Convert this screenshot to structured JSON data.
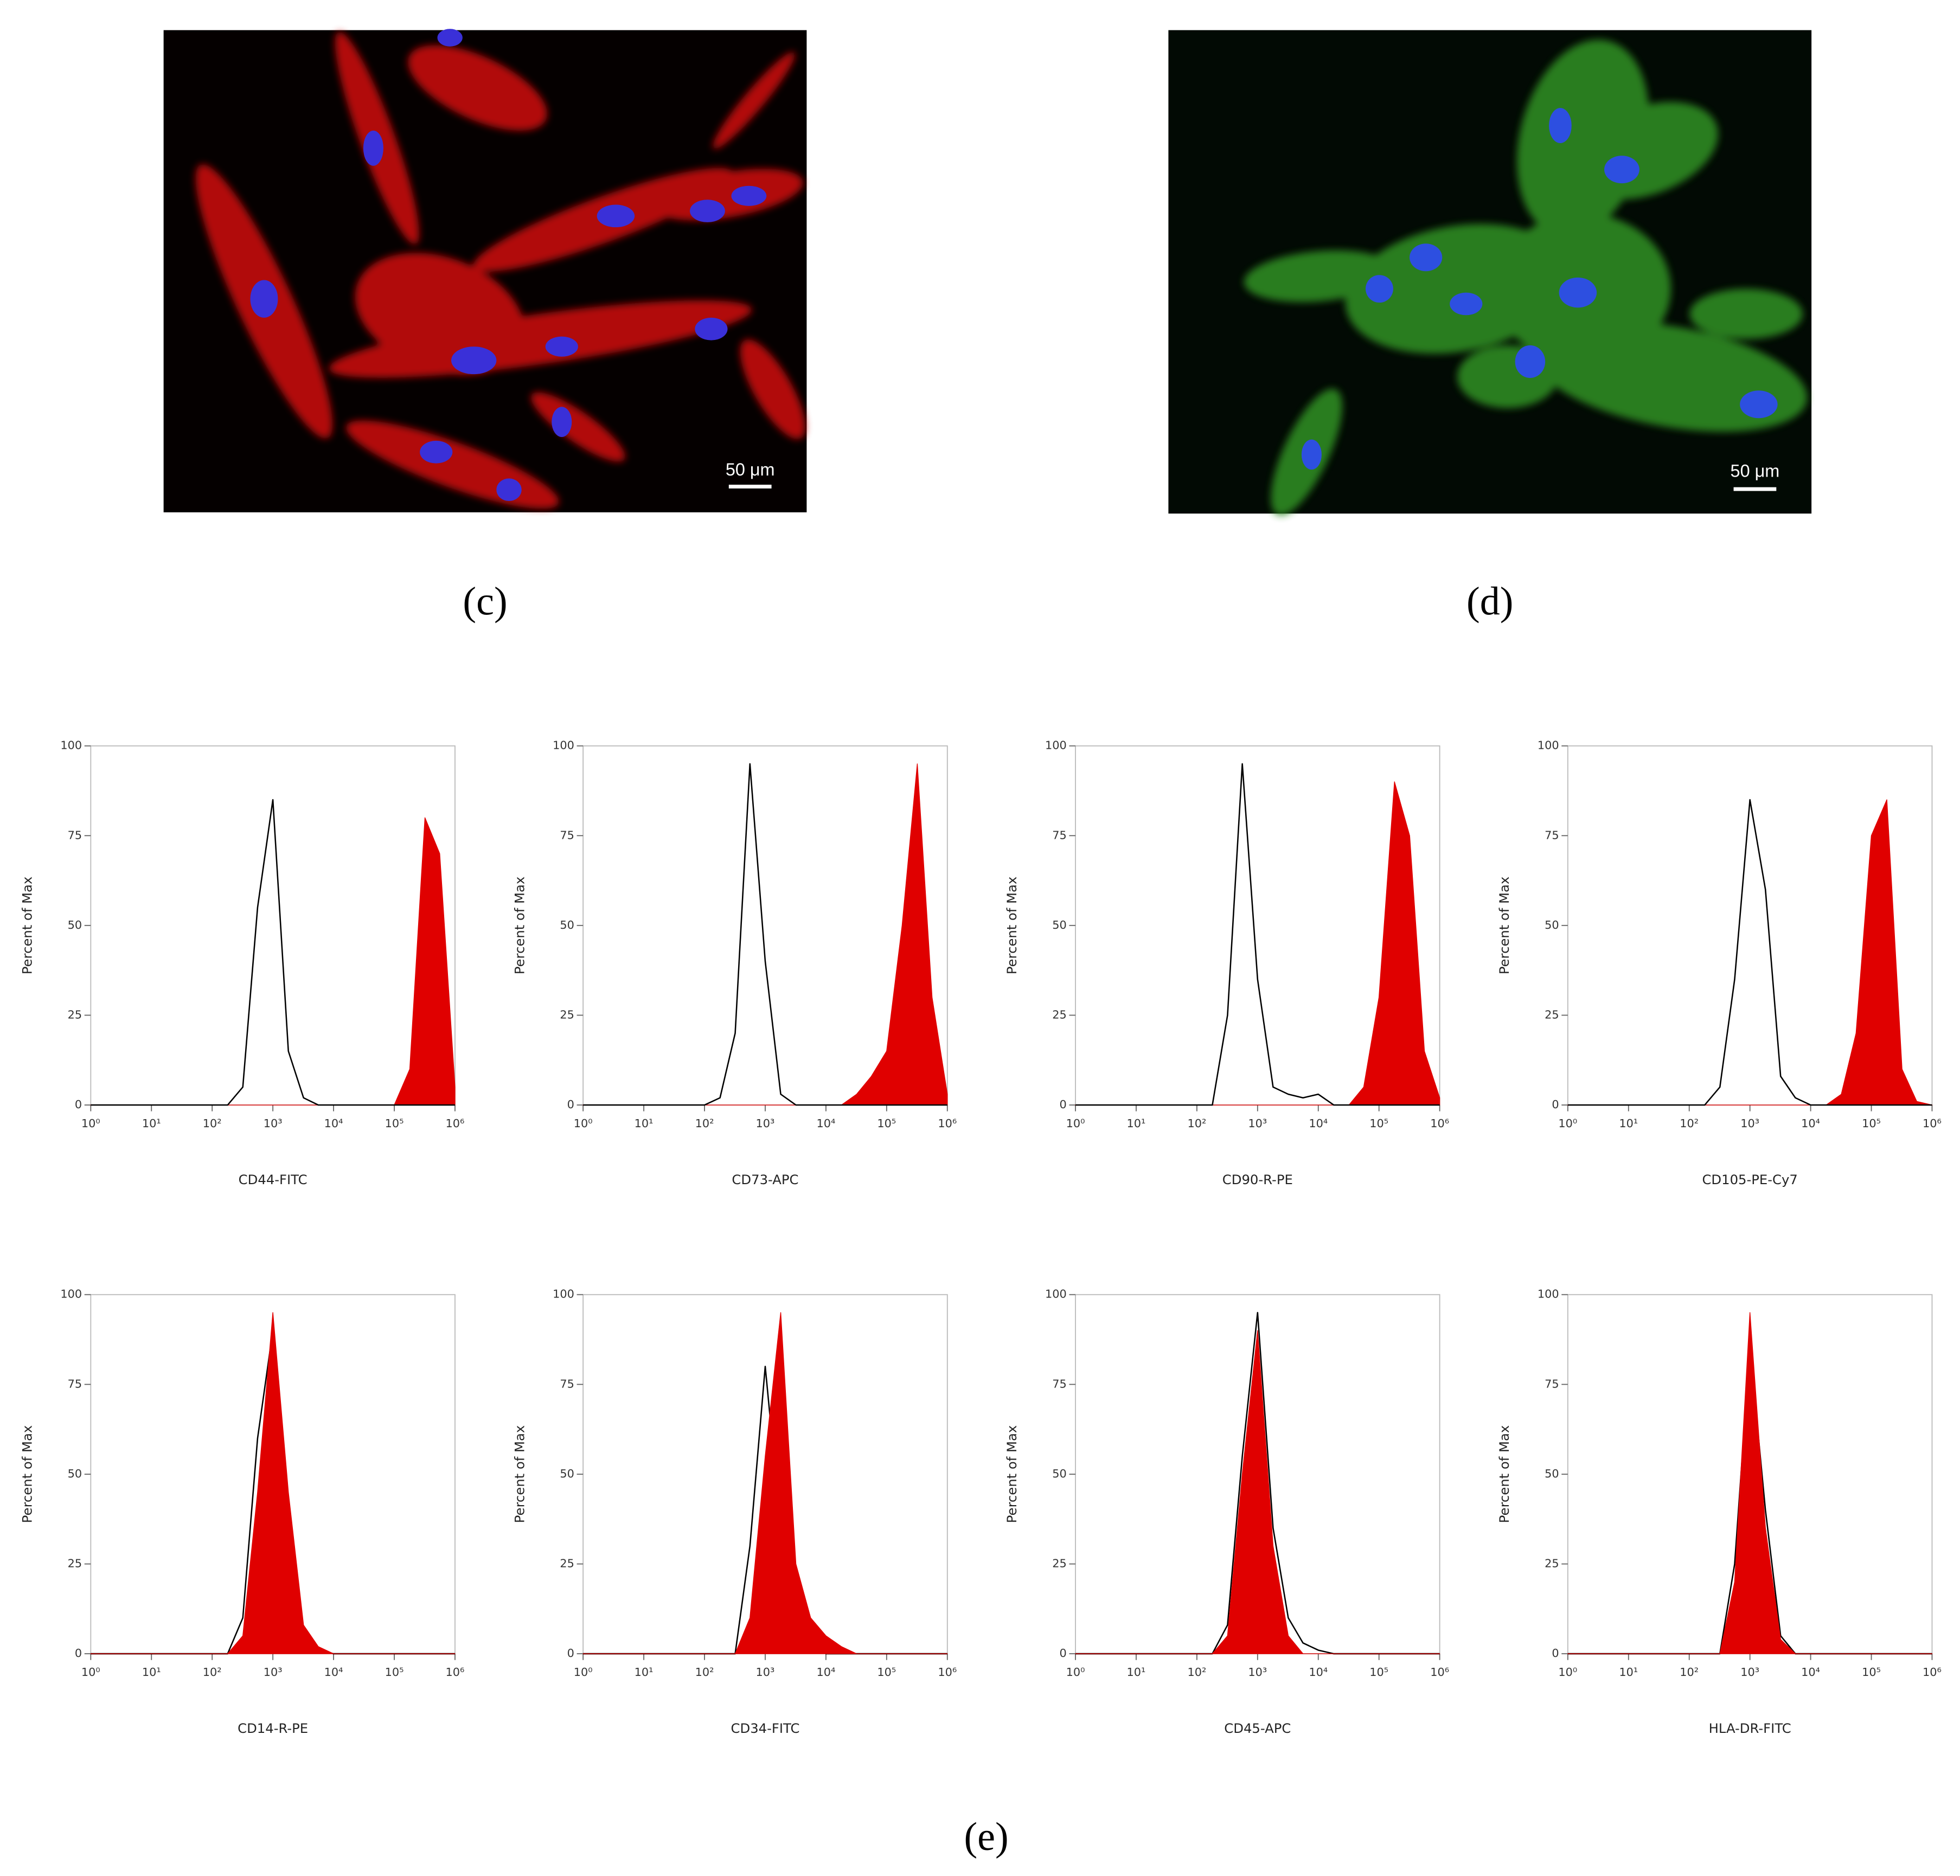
{
  "images": [
    {
      "label": "(c)",
      "scale_label": "50 μm"
    },
    {
      "label": "(d)",
      "scale_label": "50 μm"
    }
  ],
  "panel_e_label": "(e)",
  "chart_data": [
    {
      "type": "area",
      "xlabel": "CD44-FITC",
      "ylabel": "Percent of Max",
      "xscale": "log",
      "xlim": [
        1,
        1000000
      ],
      "ylim": [
        0,
        100
      ],
      "xticks": [
        {
          "value": 1,
          "label": "10⁰"
        },
        {
          "value": 10,
          "label": "10¹"
        },
        {
          "value": 100,
          "label": "10²"
        },
        {
          "value": 1000,
          "label": "10³"
        },
        {
          "value": 10000,
          "label": "10⁴"
        },
        {
          "value": 100000,
          "label": "10⁵"
        },
        {
          "value": 1000000,
          "label": "10⁶"
        }
      ],
      "yticks": [
        0,
        25,
        50,
        75,
        100
      ],
      "x": [
        1,
        2,
        3,
        6,
        10,
        18,
        32,
        56,
        100,
        180,
        320,
        560,
        1000,
        1800,
        3200,
        5600,
        10000,
        18000,
        32000,
        56000,
        100000,
        180000,
        320000,
        560000,
        1000000
      ],
      "series": [
        {
          "color": "#e00000",
          "fill": true,
          "values": [
            0,
            0,
            0,
            0,
            0,
            0,
            0,
            0,
            0,
            0,
            0,
            0,
            0,
            0,
            0,
            0,
            0,
            0,
            0,
            0,
            0,
            10,
            80,
            70,
            5
          ]
        },
        {
          "color": "#000000",
          "fill": false,
          "values": [
            0,
            0,
            0,
            0,
            0,
            0,
            0,
            0,
            0,
            0,
            5,
            55,
            85,
            15,
            2,
            0,
            0,
            0,
            0,
            0,
            0,
            0,
            0,
            0,
            0
          ]
        }
      ]
    },
    {
      "type": "area",
      "xlabel": "CD73-APC",
      "ylabel": "Percent of Max",
      "xscale": "log",
      "xlim": [
        1,
        1000000
      ],
      "ylim": [
        0,
        100
      ],
      "xticks": [
        {
          "value": 1,
          "label": "10⁰"
        },
        {
          "value": 10,
          "label": "10¹"
        },
        {
          "value": 100,
          "label": "10²"
        },
        {
          "value": 1000,
          "label": "10³"
        },
        {
          "value": 10000,
          "label": "10⁴"
        },
        {
          "value": 100000,
          "label": "10⁵"
        },
        {
          "value": 1000000,
          "label": "10⁶"
        }
      ],
      "yticks": [
        0,
        25,
        50,
        75,
        100
      ],
      "x": [
        1,
        2,
        3,
        6,
        10,
        18,
        32,
        56,
        100,
        180,
        320,
        560,
        1000,
        1800,
        3200,
        5600,
        10000,
        18000,
        32000,
        56000,
        100000,
        180000,
        320000,
        560000,
        1000000
      ],
      "series": [
        {
          "color": "#e00000",
          "fill": true,
          "values": [
            0,
            0,
            0,
            0,
            0,
            0,
            0,
            0,
            0,
            0,
            0,
            0,
            0,
            0,
            0,
            0,
            0,
            0,
            3,
            8,
            15,
            50,
            95,
            30,
            3
          ]
        },
        {
          "color": "#000000",
          "fill": false,
          "values": [
            0,
            0,
            0,
            0,
            0,
            0,
            0,
            0,
            0,
            2,
            20,
            95,
            40,
            3,
            0,
            0,
            0,
            0,
            0,
            0,
            0,
            0,
            0,
            0,
            0
          ]
        }
      ]
    },
    {
      "type": "area",
      "xlabel": "CD90-R-PE",
      "ylabel": "Percent of Max",
      "xscale": "log",
      "xlim": [
        1,
        1000000
      ],
      "ylim": [
        0,
        100
      ],
      "xticks": [
        {
          "value": 1,
          "label": "10⁰"
        },
        {
          "value": 10,
          "label": "10¹"
        },
        {
          "value": 100,
          "label": "10²"
        },
        {
          "value": 1000,
          "label": "10³"
        },
        {
          "value": 10000,
          "label": "10⁴"
        },
        {
          "value": 100000,
          "label": "10⁵"
        },
        {
          "value": 1000000,
          "label": "10⁶"
        }
      ],
      "yticks": [
        0,
        25,
        50,
        75,
        100
      ],
      "x": [
        1,
        2,
        3,
        6,
        10,
        18,
        32,
        56,
        100,
        180,
        320,
        560,
        1000,
        1800,
        3200,
        5600,
        10000,
        18000,
        32000,
        56000,
        100000,
        180000,
        320000,
        560000,
        1000000
      ],
      "series": [
        {
          "color": "#e00000",
          "fill": true,
          "values": [
            0,
            0,
            0,
            0,
            0,
            0,
            0,
            0,
            0,
            0,
            0,
            0,
            0,
            0,
            0,
            0,
            0,
            0,
            0,
            5,
            30,
            90,
            75,
            15,
            2
          ]
        },
        {
          "color": "#000000",
          "fill": false,
          "values": [
            0,
            0,
            0,
            0,
            0,
            0,
            0,
            0,
            0,
            0,
            25,
            95,
            35,
            5,
            3,
            2,
            3,
            0,
            0,
            0,
            0,
            0,
            0,
            0,
            0
          ]
        }
      ]
    },
    {
      "type": "area",
      "xlabel": "CD105-PE-Cy7",
      "ylabel": "Percent of Max",
      "xscale": "log",
      "xlim": [
        1,
        1000000
      ],
      "ylim": [
        0,
        100
      ],
      "xticks": [
        {
          "value": 1,
          "label": "10⁰"
        },
        {
          "value": 10,
          "label": "10¹"
        },
        {
          "value": 100,
          "label": "10²"
        },
        {
          "value": 1000,
          "label": "10³"
        },
        {
          "value": 10000,
          "label": "10⁴"
        },
        {
          "value": 100000,
          "label": "10⁵"
        },
        {
          "value": 1000000,
          "label": "10⁶"
        }
      ],
      "yticks": [
        0,
        25,
        50,
        75,
        100
      ],
      "x": [
        1,
        2,
        3,
        6,
        10,
        18,
        32,
        56,
        100,
        180,
        320,
        560,
        1000,
        1800,
        3200,
        5600,
        10000,
        18000,
        32000,
        56000,
        100000,
        180000,
        320000,
        560000,
        1000000
      ],
      "series": [
        {
          "color": "#e00000",
          "fill": true,
          "values": [
            0,
            0,
            0,
            0,
            0,
            0,
            0,
            0,
            0,
            0,
            0,
            0,
            0,
            0,
            0,
            0,
            0,
            0,
            3,
            20,
            75,
            85,
            10,
            1,
            0
          ]
        },
        {
          "color": "#000000",
          "fill": false,
          "values": [
            0,
            0,
            0,
            0,
            0,
            0,
            0,
            0,
            0,
            0,
            5,
            35,
            85,
            60,
            8,
            2,
            0,
            0,
            0,
            0,
            0,
            0,
            0,
            0,
            0
          ]
        }
      ]
    },
    {
      "type": "area",
      "xlabel": "CD14-R-PE",
      "ylabel": "Percent of Max",
      "xscale": "log",
      "xlim": [
        1,
        1000000
      ],
      "ylim": [
        0,
        100
      ],
      "xticks": [
        {
          "value": 1,
          "label": "10⁰"
        },
        {
          "value": 10,
          "label": "10¹"
        },
        {
          "value": 100,
          "label": "10²"
        },
        {
          "value": 1000,
          "label": "10³"
        },
        {
          "value": 10000,
          "label": "10⁴"
        },
        {
          "value": 100000,
          "label": "10⁵"
        },
        {
          "value": 1000000,
          "label": "10⁶"
        }
      ],
      "yticks": [
        0,
        25,
        50,
        75,
        100
      ],
      "x": [
        1,
        2,
        3,
        6,
        10,
        18,
        32,
        56,
        100,
        180,
        320,
        560,
        1000,
        1800,
        3200,
        5600,
        10000,
        18000,
        32000,
        56000,
        100000,
        180000,
        320000,
        560000,
        1000000
      ],
      "series": [
        {
          "color": "#000000",
          "fill": false,
          "values": [
            0,
            0,
            0,
            0,
            0,
            0,
            0,
            0,
            0,
            0,
            10,
            60,
            90,
            30,
            5,
            1,
            0,
            0,
            0,
            0,
            0,
            0,
            0,
            0,
            0
          ]
        },
        {
          "color": "#e00000",
          "fill": true,
          "values": [
            0,
            0,
            0,
            0,
            0,
            0,
            0,
            0,
            0,
            0,
            5,
            45,
            95,
            45,
            8,
            2,
            0,
            0,
            0,
            0,
            0,
            0,
            0,
            0,
            0
          ]
        }
      ]
    },
    {
      "type": "area",
      "xlabel": "CD34-FITC",
      "ylabel": "Percent of Max",
      "xscale": "log",
      "xlim": [
        1,
        1000000
      ],
      "ylim": [
        0,
        100
      ],
      "xticks": [
        {
          "value": 1,
          "label": "10⁰"
        },
        {
          "value": 10,
          "label": "10¹"
        },
        {
          "value": 100,
          "label": "10²"
        },
        {
          "value": 1000,
          "label": "10³"
        },
        {
          "value": 10000,
          "label": "10⁴"
        },
        {
          "value": 100000,
          "label": "10⁵"
        },
        {
          "value": 1000000,
          "label": "10⁶"
        }
      ],
      "yticks": [
        0,
        25,
        50,
        75,
        100
      ],
      "x": [
        1,
        2,
        3,
        6,
        10,
        18,
        32,
        56,
        100,
        180,
        320,
        560,
        1000,
        1800,
        3200,
        5600,
        10000,
        18000,
        32000,
        56000,
        100000,
        180000,
        320000,
        560000,
        1000000
      ],
      "series": [
        {
          "color": "#000000",
          "fill": false,
          "values": [
            0,
            0,
            0,
            0,
            0,
            0,
            0,
            0,
            0,
            0,
            0,
            30,
            80,
            35,
            10,
            3,
            0,
            0,
            0,
            0,
            0,
            0,
            0,
            0,
            0
          ]
        },
        {
          "color": "#e00000",
          "fill": true,
          "values": [
            0,
            0,
            0,
            0,
            0,
            0,
            0,
            0,
            0,
            0,
            0,
            10,
            55,
            95,
            25,
            10,
            5,
            2,
            0,
            0,
            0,
            0,
            0,
            0,
            0
          ]
        }
      ]
    },
    {
      "type": "area",
      "xlabel": "CD45-APC",
      "ylabel": "Percent of Max",
      "xscale": "log",
      "xlim": [
        1,
        1000000
      ],
      "ylim": [
        0,
        100
      ],
      "xticks": [
        {
          "value": 1,
          "label": "10⁰"
        },
        {
          "value": 10,
          "label": "10¹"
        },
        {
          "value": 100,
          "label": "10²"
        },
        {
          "value": 1000,
          "label": "10³"
        },
        {
          "value": 10000,
          "label": "10⁴"
        },
        {
          "value": 100000,
          "label": "10⁵"
        },
        {
          "value": 1000000,
          "label": "10⁶"
        }
      ],
      "yticks": [
        0,
        25,
        50,
        75,
        100
      ],
      "x": [
        1,
        2,
        3,
        6,
        10,
        18,
        32,
        56,
        100,
        180,
        320,
        560,
        1000,
        1800,
        3200,
        5600,
        10000,
        18000,
        32000,
        56000,
        100000,
        180000,
        320000,
        560000,
        1000000
      ],
      "series": [
        {
          "color": "#000000",
          "fill": false,
          "values": [
            0,
            0,
            0,
            0,
            0,
            0,
            0,
            0,
            0,
            0,
            8,
            55,
            95,
            35,
            10,
            3,
            1,
            0,
            0,
            0,
            0,
            0,
            0,
            0,
            0
          ]
        },
        {
          "color": "#e00000",
          "fill": true,
          "values": [
            0,
            0,
            0,
            0,
            0,
            0,
            0,
            0,
            0,
            0,
            5,
            50,
            90,
            30,
            5,
            0,
            0,
            0,
            0,
            0,
            0,
            0,
            0,
            0,
            0
          ]
        }
      ]
    },
    {
      "type": "area",
      "xlabel": "HLA-DR-FITC",
      "ylabel": "Percent of Max",
      "xscale": "log",
      "xlim": [
        1,
        1000000
      ],
      "ylim": [
        0,
        100
      ],
      "xticks": [
        {
          "value": 1,
          "label": "10⁰"
        },
        {
          "value": 10,
          "label": "10¹"
        },
        {
          "value": 100,
          "label": "10²"
        },
        {
          "value": 1000,
          "label": "10³"
        },
        {
          "value": 10000,
          "label": "10⁴"
        },
        {
          "value": 100000,
          "label": "10⁵"
        },
        {
          "value": 1000000,
          "label": "10⁶"
        }
      ],
      "yticks": [
        0,
        25,
        50,
        75,
        100
      ],
      "x": [
        1,
        2,
        3,
        6,
        10,
        18,
        32,
        56,
        100,
        180,
        320,
        560,
        1000,
        1800,
        3200,
        5600,
        10000,
        18000,
        32000,
        56000,
        100000,
        180000,
        320000,
        560000,
        1000000
      ],
      "series": [
        {
          "color": "#000000",
          "fill": false,
          "values": [
            0,
            0,
            0,
            0,
            0,
            0,
            0,
            0,
            0,
            0,
            0,
            25,
            85,
            40,
            5,
            0,
            0,
            0,
            0,
            0,
            0,
            0,
            0,
            0,
            0
          ]
        },
        {
          "color": "#e00000",
          "fill": true,
          "values": [
            0,
            0,
            0,
            0,
            0,
            0,
            0,
            0,
            0,
            0,
            0,
            20,
            95,
            35,
            4,
            0,
            0,
            0,
            0,
            0,
            0,
            0,
            0,
            0,
            0
          ]
        }
      ]
    }
  ]
}
